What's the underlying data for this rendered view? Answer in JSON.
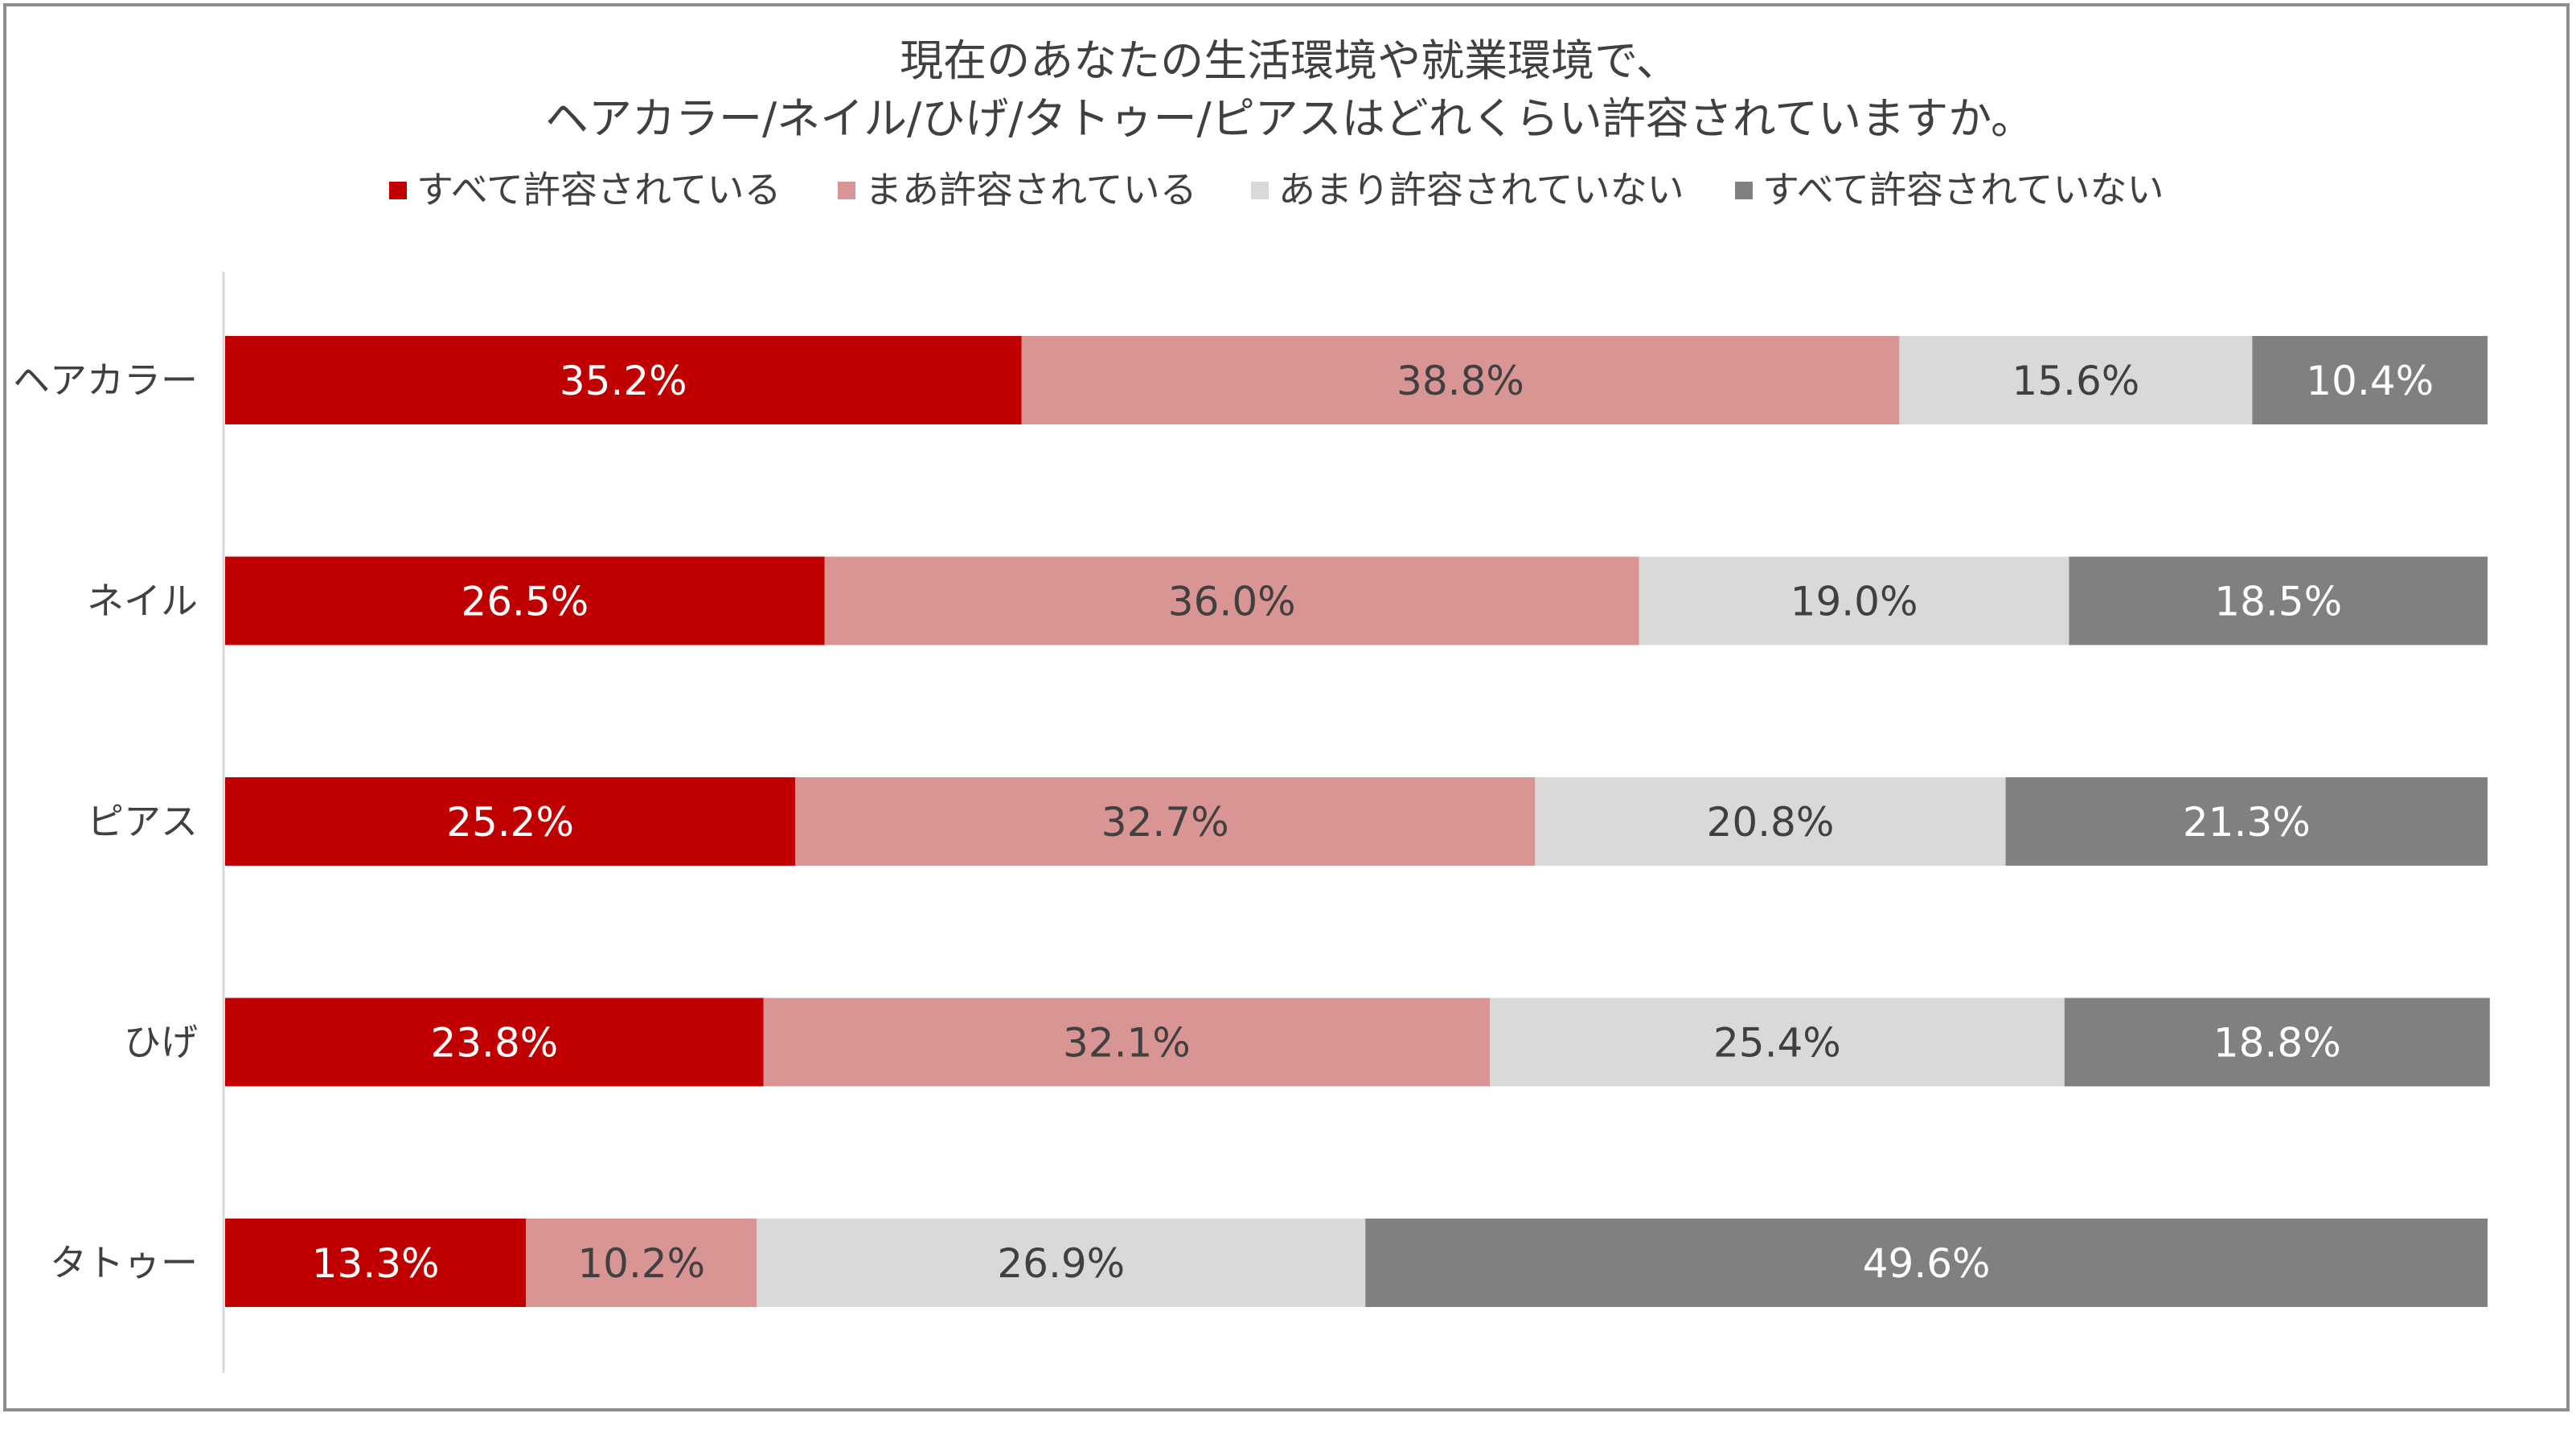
{
  "chart_data": {
    "type": "bar",
    "orientation": "horizontal",
    "stacked": true,
    "title": "現在のあなたの生活環境や就業環境で、",
    "subtitle": "ヘアカラー/ネイル/ひげ/タトゥー/ピアスはどれくらい許容されていますか。",
    "categories": [
      "ヘアカラー",
      "ネイル",
      "ピアス",
      "ひげ",
      "タトゥー"
    ],
    "series": [
      {
        "name": "すべて許容されている",
        "color": "#c00000",
        "label_color": "#ffffff",
        "values": [
          35.2,
          26.5,
          25.2,
          23.8,
          13.3
        ],
        "labels": [
          "35.2%",
          "26.5%",
          "25.2%",
          "23.8%",
          "13.3%"
        ]
      },
      {
        "name": "まあ許容されている",
        "color": "#d99594",
        "label_color": "#404040",
        "values": [
          38.8,
          36.0,
          32.7,
          32.1,
          10.2
        ],
        "labels": [
          "38.8%",
          "36.0%",
          "32.7%",
          "32.1%",
          "10.2%"
        ]
      },
      {
        "name": "あまり許容されていない",
        "color": "#d9d9d9",
        "label_color": "#404040",
        "values": [
          15.6,
          19.0,
          20.8,
          25.4,
          26.9
        ],
        "labels": [
          "15.6%",
          "19.0%",
          "20.8%",
          "25.4%",
          "26.9%"
        ]
      },
      {
        "name": "すべて許容されていない",
        "color": "#808080",
        "label_color": "#ffffff",
        "values": [
          10.4,
          18.5,
          21.3,
          18.8,
          49.6
        ],
        "labels": [
          "10.4%",
          "18.5%",
          "21.3%",
          "18.8%",
          "49.6%"
        ]
      }
    ],
    "xlim": [
      0,
      100
    ],
    "legend_position": "top",
    "grid": false
  }
}
